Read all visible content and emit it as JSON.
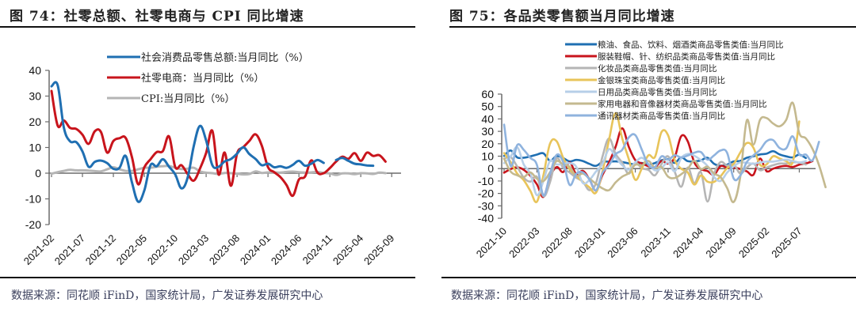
{
  "charts": [
    {
      "figure_title": "图 74：社零总额、社零电商与 CPI 同比增速",
      "source_note": "数据来源：同花顺 iFinD，国家统计局，广发证券发展研究中心"
    },
    {
      "figure_title": "图 75：各品类零售额当月同比增速",
      "source_note": "数据来源：同花顺 iFinD，国家统计局，广发证券发展研究中心"
    }
  ],
  "chart_data": [
    {
      "type": "line",
      "title": "社零总额、社零电商与 CPI 同比增速",
      "xlabel": "",
      "ylabel": "",
      "ylim": [
        -20,
        40
      ],
      "yticks": [
        40,
        30,
        20,
        10,
        0,
        -10,
        -20
      ],
      "x_start": "2021-02",
      "x_end": "2025-10",
      "xtick_labels": [
        "2021-02",
        "2021-07",
        "2021-12",
        "2022-05",
        "2022-10",
        "2023-03",
        "2023-08",
        "2024-01",
        "2024-06",
        "2024-11",
        "2025-04",
        "2025-09"
      ],
      "grid": false,
      "legend_position": "top-right",
      "series": [
        {
          "name": "社会消费品零售总额:当月同比（%）",
          "color": "#1f6fb2",
          "values": [
            33.8,
            34.2,
            17.7,
            12.4,
            12.1,
            8.5,
            2.5,
            4.4,
            4.9,
            3.9,
            1.7,
            2.1,
            6.7,
            -3.5,
            -11.1,
            -6.7,
            3.1,
            2.7,
            5.4,
            2.5,
            -0.5,
            -5.9,
            -1.8,
            10.6,
            18.4,
            12.7,
            3.1,
            2.5,
            4.6,
            5.5,
            7.6,
            10.1,
            7.4,
            5.5,
            3.1,
            3.7,
            2.3,
            2.7,
            2.1,
            3.2,
            4.8,
            2.9,
            3.7,
            5.1,
            4.0,
            6.4,
            5.1,
            5.9,
            4.8,
            3.7,
            3.4,
            3.0,
            2.9
          ],
          "missing_after_index": 44
        },
        {
          "name": "社零电商：当月同比（%）",
          "color": "#c8141c",
          "values": [
            32.0,
            18.5,
            20.5,
            17.6,
            17.2,
            15.0,
            11.4,
            16.3,
            16.0,
            8.0,
            12.5,
            13.6,
            13.7,
            6.3,
            -4.3,
            2.3,
            5.4,
            8.2,
            8.6,
            14.3,
            2.4,
            3.1,
            -0.3,
            -2.9,
            1.8,
            7.9,
            16.5,
            -0.5,
            8.0,
            -4.9,
            7.6,
            10.1,
            12.6,
            15.1,
            10.7,
            2.4,
            0.4,
            -1.5,
            -4.6,
            -8.8,
            -2.5,
            -1.3,
            5.0,
            0.2,
            0.0,
            2.0,
            4.5,
            6.4,
            5.6,
            7.8,
            4.8,
            8.0,
            6.7,
            7.0,
            4.5
          ],
          "missing_index_gap": null
        },
        {
          "name": "CPI:当月同比（%）",
          "color": "#b5b5b5",
          "values": [
            -0.2,
            0.4,
            0.9,
            1.3,
            1.1,
            1.1,
            1.0,
            0.8,
            0.7,
            1.5,
            2.3,
            1.5,
            0.9,
            0.9,
            1.5,
            2.1,
            2.1,
            2.5,
            2.7,
            2.8,
            2.1,
            1.6,
            1.8,
            2.1,
            0.7,
            0.2,
            0.0,
            -0.3,
            0.1,
            0.0,
            -0.2,
            -0.5,
            -0.3,
            0.7,
            0.1,
            0.3,
            0.3,
            0.2,
            0.5,
            0.6,
            0.4,
            0.2,
            0.3,
            0.5,
            0.1,
            -0.1,
            -0.7,
            -0.1,
            -0.1,
            -0.4,
            0.0,
            -0.1,
            -0.3,
            0.2,
            0.0
          ]
        }
      ]
    },
    {
      "type": "line",
      "title": "各品类零售额当月同比增速",
      "xlabel": "",
      "ylabel": "",
      "ylim": [
        -40,
        60
      ],
      "yticks": [
        60,
        50,
        40,
        30,
        20,
        10,
        0,
        -10,
        -20,
        -30,
        -40
      ],
      "x_start": "2021-10",
      "x_end": "2025-09",
      "xtick_labels": [
        "2021-10",
        "2022-03",
        "2022-08",
        "2023-01",
        "2023-06",
        "2023-11",
        "2024-04",
        "2024-09",
        "2025-02",
        "2025-07"
      ],
      "grid": false,
      "legend_position": "top-right",
      "series": [
        {
          "name": "粮油、食品、饮料、烟酒类商品零售类值:当月同比",
          "color": "#1f6fb2",
          "values": [
            10.2,
            14.6,
            9.0,
            8.8,
            9.8,
            11.3,
            12.3,
            6.3,
            10.1,
            8.5,
            5.8,
            7.0,
            6.1,
            3.8,
            2.2,
            5.3,
            5.6,
            5.8,
            5.3,
            4.2,
            3.4,
            4.5,
            3.1,
            4.5,
            6.7,
            7.6,
            4.6,
            9.0,
            6.0,
            5.8,
            6.6,
            8.7,
            3.9,
            2.3,
            3.2,
            5.8,
            6.2,
            8.7,
            9.9,
            11.4,
            12.0,
            14.0,
            11.4,
            9.9,
            9.0,
            11.2,
            8.5
          ]
        },
        {
          "name": "服装鞋帽、针、纺织品类商品零售类值:当月同比",
          "color": "#c8141c",
          "values": [
            -3.3,
            -0.4,
            1.0,
            -1.0,
            -5.8,
            -12.7,
            -22.8,
            -6.6,
            1.2,
            -2.8,
            5.0,
            -4.5,
            -1.8,
            -8.6,
            -17.7,
            -5.2,
            5.0,
            17.6,
            32.4,
            17.6,
            6.9,
            4.2,
            1.9,
            1.0,
            6.1,
            4.1,
            9.0,
            26.1,
            22.0,
            5.0,
            -0.4,
            -2.0,
            -5.0,
            2.0,
            0.7,
            0.8,
            -0.3,
            -2.2,
            -5.0,
            8.0,
            -2.0,
            -0.1,
            1.5,
            2.2,
            1.3,
            3.2,
            4.1,
            6.0
          ]
        },
        {
          "name": "化妆品类商品零售类值:当月同比",
          "color": "#b5b5b5",
          "values": [
            7.9,
            9.3,
            1.6,
            -7.3,
            -10.5,
            -6.6,
            -22.3,
            -11.0,
            8.1,
            0.7,
            -3.2,
            -7.3,
            -10.5,
            -17.3,
            -11.7,
            9.6,
            24.3,
            11.7,
            4.8,
            -4.1,
            4.5,
            0.3,
            -1.1,
            -5.4,
            3.6,
            9.9,
            -2.4,
            -14.6,
            0.8,
            -11.9,
            -2.9,
            -26.5,
            -4.6,
            5.2,
            2.4,
            3.5,
            -3.9,
            0.8,
            4.1,
            -1.3,
            0.8,
            2.7,
            4.1,
            4.1,
            5.1,
            4.8,
            3.3
          ]
        },
        {
          "name": "金银珠宝类商品零售类值:当月同比",
          "color": "#e8c45a",
          "values": [
            12.5,
            5.3,
            -4.1,
            -9.3,
            -17.9,
            -26.7,
            -5.1,
            20.0,
            22.1,
            8.8,
            -0.6,
            -5.6,
            -10.8,
            -15.1,
            -19.4,
            -2.5,
            23.1,
            44.7,
            24.4,
            7.7,
            -9.0,
            0.1,
            10.7,
            9.5,
            29.4,
            26.8,
            7.0,
            -0.1,
            -3.1,
            -12.8,
            -5.6,
            -10.5,
            -10.7,
            -6.2,
            0.4,
            3.8,
            12.9,
            20.6,
            16.9,
            3.2,
            3.4,
            9.9,
            8.1,
            6.1,
            5.3,
            38.0
          ]
        },
        {
          "name": "日用品类商品零售类值:当月同比",
          "color": "#b7cfe8",
          "values": [
            4.4,
            9.8,
            17.2,
            3.3,
            -4.1,
            -21.4,
            -9.8,
            6.1,
            3.4,
            3.7,
            4.3,
            1.5,
            -11.5,
            -9.2,
            -2.4,
            3.6,
            15.7,
            9.2,
            2.8,
            -0.8,
            5.0,
            8.7,
            3.8,
            -1.4,
            0.5,
            4.9,
            -2.1,
            8.4,
            11.8,
            10.3,
            6.8,
            2.1,
            -6.7,
            -10.0,
            -3.2,
            1.8,
            5.0,
            4.6,
            3.9,
            4.9,
            5.7,
            5.6,
            6.5,
            7.2,
            6.1,
            5.0,
            6.0
          ]
        },
        {
          "name": "家用电器和音像器材类商品零售类值:当月同比",
          "color": "#c4b98f",
          "values": [
            8.0,
            -2.4,
            -5.4,
            -6.9,
            -3.1,
            -8.1,
            -10.0,
            -3.0,
            6.0,
            3.4,
            1.4,
            -5.9,
            -4.0,
            -8.0,
            -12.2,
            -15.9,
            -17.4,
            -11.1,
            -6.5,
            -3.6,
            3.1,
            2.5,
            6.2,
            0.6,
            1.2,
            -6.5,
            -7.6,
            -4.5,
            -0.2,
            6.3,
            -0.3,
            1.5,
            -4.0,
            -6.9,
            -15.7,
            -26.9,
            -6.6,
            38.8,
            19.3,
            39.1,
            40.7,
            36.4,
            34.1,
            39.2,
            53.0,
            28.6,
            24.4,
            16.0,
            2.8,
            -15.0
          ]
        },
        {
          "name": "通讯器材类商品零售类值:当月同比",
          "color": "#8fb3de",
          "values": [
            35.4,
            2.0,
            19.0,
            15.1,
            8.6,
            3.0,
            -21.6,
            -4.4,
            11.0,
            5.4,
            -13.2,
            -4.2,
            -3.0,
            -8.7,
            -17.5,
            -3.5,
            2.7,
            11.6,
            15.1,
            25.0,
            27.0,
            15.2,
            3.0,
            1.2,
            9.9,
            7.2,
            10.7,
            9.0,
            10.5,
            12.8,
            13.3,
            7.2,
            10.6,
            14.6,
            12.7,
            -8.0,
            -5.6,
            5.3,
            10.6,
            15.0,
            22.0,
            23.0,
            16.6,
            16.3,
            26.0,
            11.4,
            11.3,
            6.6,
            21.5
          ]
        }
      ]
    }
  ]
}
